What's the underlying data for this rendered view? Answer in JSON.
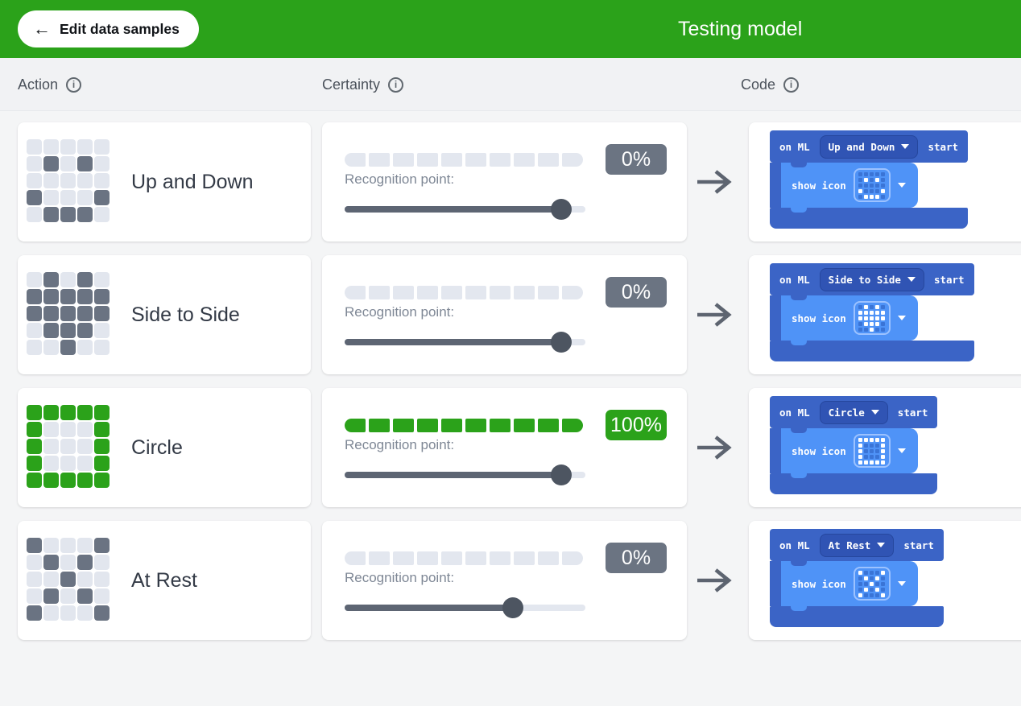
{
  "header": {
    "back_label": "Edit data samples",
    "back_arrow": "←",
    "title": "Testing model"
  },
  "columns": [
    {
      "label": "Action"
    },
    {
      "label": "Certainty"
    },
    {
      "label": "Code"
    }
  ],
  "labels": {
    "recognition_point": "Recognition point:",
    "info_glyph": "i"
  },
  "blocks": {
    "on_ml": "on ML",
    "start": "start",
    "show_icon": "show icon"
  },
  "colors": {
    "header_green": "#2ba21a",
    "accent_green": "#2ba21a",
    "badge_gray": "#6b7482",
    "led_gray": "#6a7382",
    "led_off": "#e2e6ee",
    "block_outer_blue": "#3b64c6",
    "block_inner_blue": "#4f93f7"
  },
  "rows": [
    {
      "name": "Up and Down",
      "certainty": 0,
      "certainty_label": "0%",
      "segments_filled": 0,
      "recognition_point": 0.9,
      "active": false,
      "led_pattern": [
        "00000",
        "01010",
        "00000",
        "10001",
        "01110"
      ]
    },
    {
      "name": "Side to Side",
      "certainty": 0,
      "certainty_label": "0%",
      "segments_filled": 0,
      "recognition_point": 0.9,
      "active": false,
      "led_pattern": [
        "01010",
        "11111",
        "11111",
        "01110",
        "00100"
      ]
    },
    {
      "name": "Circle",
      "certainty": 100,
      "certainty_label": "100%",
      "segments_filled": 10,
      "recognition_point": 0.9,
      "active": true,
      "led_pattern": [
        "11111",
        "10001",
        "10001",
        "10001",
        "11111"
      ]
    },
    {
      "name": "At Rest",
      "certainty": 0,
      "certainty_label": "0%",
      "segments_filled": 0,
      "recognition_point": 0.7,
      "active": false,
      "led_pattern": [
        "10001",
        "01010",
        "00100",
        "01010",
        "10001"
      ]
    }
  ]
}
